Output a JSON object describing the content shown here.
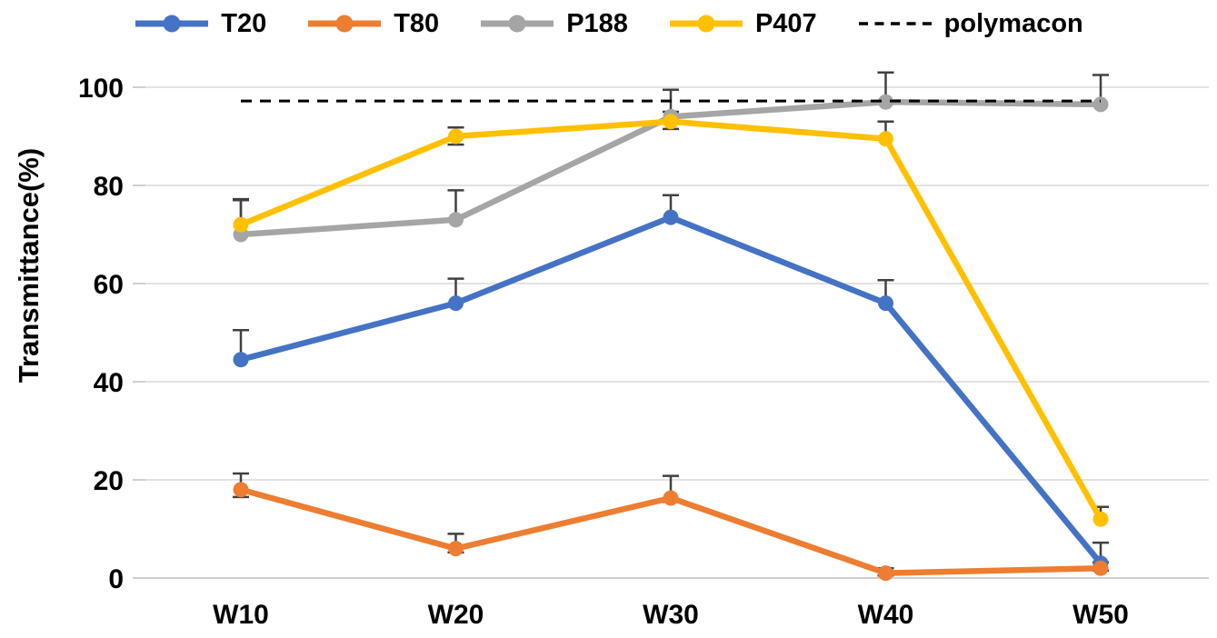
{
  "chart_data": {
    "type": "line",
    "title": "",
    "ylabel": "Transmittance(%)",
    "xlabel": "",
    "categories": [
      "W10",
      "W20",
      "W30",
      "W40",
      "W50"
    ],
    "ylim": [
      0,
      100
    ],
    "yticks": [
      0,
      20,
      40,
      60,
      80,
      100
    ],
    "grid": true,
    "legend_position": "top",
    "series": [
      {
        "name": "T20",
        "color": "#4472C4",
        "marker": "circle",
        "values": [
          44.5,
          56,
          73.5,
          56,
          3
        ],
        "errors_up": [
          6,
          5,
          4.5,
          4.7,
          4.2
        ],
        "errors_down": [
          0,
          0,
          0,
          0,
          0
        ]
      },
      {
        "name": "T80",
        "color": "#ED7D31",
        "marker": "circle",
        "values": [
          18,
          6,
          16.3,
          1,
          2
        ],
        "errors_up": [
          3.3,
          3,
          4.5,
          1,
          1.2
        ],
        "errors_down": [
          1.5,
          0.8,
          0.8,
          0.5,
          0.5
        ]
      },
      {
        "name": "P188",
        "color": "#A5A5A5",
        "marker": "circle",
        "values": [
          70,
          73,
          94,
          97,
          96.5
        ],
        "errors_up": [
          7,
          6,
          5.5,
          6,
          6
        ],
        "errors_down": [
          0,
          0,
          0,
          0,
          0
        ]
      },
      {
        "name": "P407",
        "color": "#FFC000",
        "marker": "circle",
        "values": [
          72,
          90,
          93,
          89.5,
          12
        ],
        "errors_up": [
          5.2,
          1.8,
          2,
          3.5,
          2.5
        ],
        "errors_down": [
          0,
          1.7,
          1.5,
          0,
          0
        ]
      }
    ],
    "reference_line": {
      "name": "polymacon",
      "value": 97.2,
      "style": "dashed",
      "color": "#000000"
    }
  },
  "colors": {
    "background": "#FFFFFF",
    "gridline": "#D9D9D9",
    "axis_line": "#BFBFBF",
    "error_bar": "#404040",
    "text": "#000000"
  }
}
